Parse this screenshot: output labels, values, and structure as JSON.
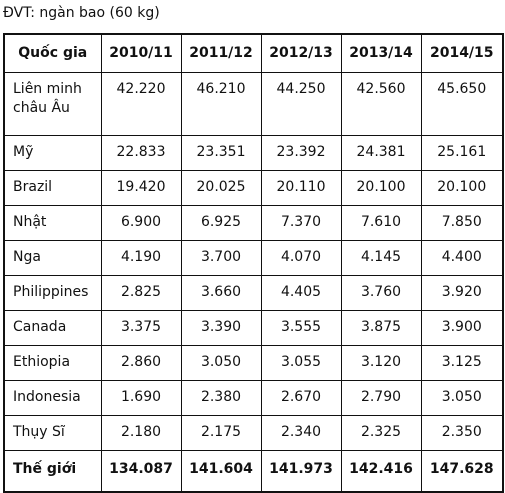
{
  "caption": "ĐVT: ngàn bao (60 kg)",
  "table": {
    "header": [
      "Quốc gia",
      "2010/11",
      "2011/12",
      "2012/13",
      "2013/14",
      "2014/15"
    ],
    "rows": [
      [
        "Liên minh châu Âu",
        "42.220",
        "46.210",
        "44.250",
        "42.560",
        "45.650"
      ],
      [
        "Mỹ",
        "22.833",
        "23.351",
        "23.392",
        "24.381",
        "25.161"
      ],
      [
        "Brazil",
        "19.420",
        "20.025",
        "20.110",
        "20.100",
        "20.100"
      ],
      [
        "Nhật",
        "6.900",
        "6.925",
        "7.370",
        "7.610",
        "7.850"
      ],
      [
        "Nga",
        "4.190",
        "3.700",
        "4.070",
        "4.145",
        "4.400"
      ],
      [
        "Philippines",
        "2.825",
        "3.660",
        "4.405",
        "3.760",
        "3.920"
      ],
      [
        "Canada",
        "3.375",
        "3.390",
        "3.555",
        "3.875",
        "3.900"
      ],
      [
        "Ethiopia",
        "2.860",
        "3.050",
        "3.055",
        "3.120",
        "3.125"
      ],
      [
        "Indonesia",
        "1.690",
        "2.380",
        "2.670",
        "2.790",
        "3.050"
      ],
      [
        "Thụy Sĩ",
        "2.180",
        "2.175",
        "2.340",
        "2.325",
        "2.350"
      ],
      [
        "Thế giới",
        "134.087",
        "141.604",
        "141.973",
        "142.416",
        "147.628"
      ]
    ]
  }
}
